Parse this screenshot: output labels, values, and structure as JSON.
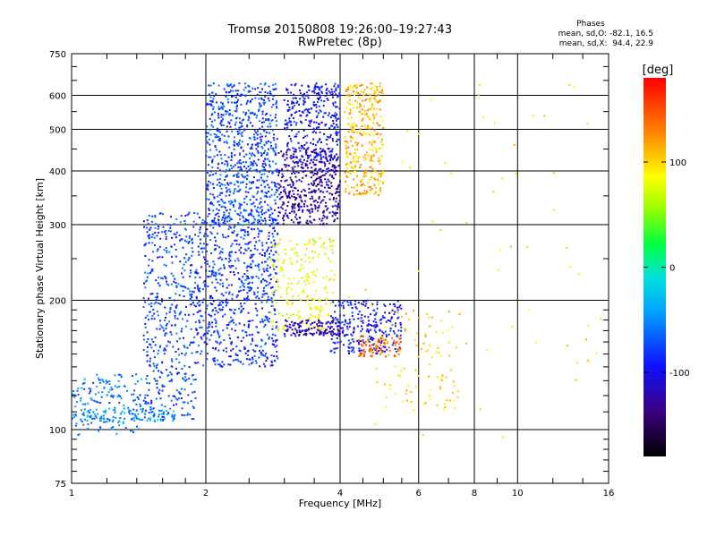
{
  "chart_data": {
    "type": "scatter",
    "title": "Tromsø 20150808 19:26:00–19:27:43",
    "subtitle": "RwPretec (8p)",
    "xlabel": "Frequency [MHz]",
    "ylabel": "Stationary phase Virtual Height [km]",
    "xscale": "log",
    "yscale": "log",
    "xlim": [
      1,
      16
    ],
    "ylim": [
      75,
      750
    ],
    "xticks": [
      "1",
      "2",
      "4",
      "6",
      "8",
      "10",
      "16"
    ],
    "xtick_values": [
      1,
      2,
      4,
      6,
      8,
      10,
      16
    ],
    "yticks": [
      "75",
      "100",
      "200",
      "300",
      "400",
      "500",
      "600",
      "750"
    ],
    "ytick_values": [
      75,
      100,
      200,
      300,
      400,
      500,
      600,
      750
    ],
    "grid": true,
    "colorbar": {
      "label": "[deg]",
      "ticks": [
        "100",
        "0",
        "-100"
      ],
      "tick_values": [
        100,
        0,
        -100
      ],
      "range": [
        -180,
        180
      ]
    },
    "stats": {
      "heading": "Phases",
      "line1": "mean, sd,O: -82.1, 16.5",
      "line2": "mean, sd,X:  94.4, 22.9"
    },
    "clusters": [
      {
        "fmin": 1.0,
        "fmax": 1.45,
        "hmin": 97,
        "hmax": 135,
        "phase": -60,
        "n": 160
      },
      {
        "fmin": 1.05,
        "fmax": 1.7,
        "hmin": 104,
        "hmax": 112,
        "phase": -40,
        "n": 90
      },
      {
        "fmin": 1.45,
        "fmax": 1.9,
        "hmin": 105,
        "hmax": 320,
        "phase": -75,
        "n": 480
      },
      {
        "fmin": 1.9,
        "fmax": 2.9,
        "hmin": 140,
        "hmax": 320,
        "phase": -82,
        "n": 720
      },
      {
        "fmin": 2.0,
        "fmax": 2.9,
        "hmin": 300,
        "hmax": 640,
        "phase": -75,
        "n": 760
      },
      {
        "fmin": 2.9,
        "fmax": 4.0,
        "hmin": 300,
        "hmax": 450,
        "phase": -125,
        "n": 450
      },
      {
        "fmin": 3.0,
        "fmax": 4.0,
        "hmin": 420,
        "hmax": 640,
        "phase": -95,
        "n": 320
      },
      {
        "fmin": 4.1,
        "fmax": 5.0,
        "hmin": 350,
        "hmax": 640,
        "phase": 110,
        "n": 340
      },
      {
        "fmin": 2.8,
        "fmax": 3.9,
        "hmin": 170,
        "hmax": 280,
        "phase": 80,
        "n": 220
      },
      {
        "fmin": 3.0,
        "fmax": 4.0,
        "hmin": 165,
        "hmax": 180,
        "phase": -120,
        "n": 130
      },
      {
        "fmin": 3.8,
        "fmax": 5.5,
        "hmin": 150,
        "hmax": 200,
        "phase": -95,
        "n": 260
      },
      {
        "fmin": 4.4,
        "fmax": 5.5,
        "hmin": 148,
        "hmax": 165,
        "phase": 140,
        "n": 90
      },
      {
        "fmin": 5.0,
        "fmax": 7.5,
        "hmin": 110,
        "hmax": 190,
        "phase": 100,
        "n": 90
      },
      {
        "fmin": 4.0,
        "fmax": 15.8,
        "hmin": 95,
        "hmax": 640,
        "phase": 90,
        "n": 70
      }
    ]
  }
}
